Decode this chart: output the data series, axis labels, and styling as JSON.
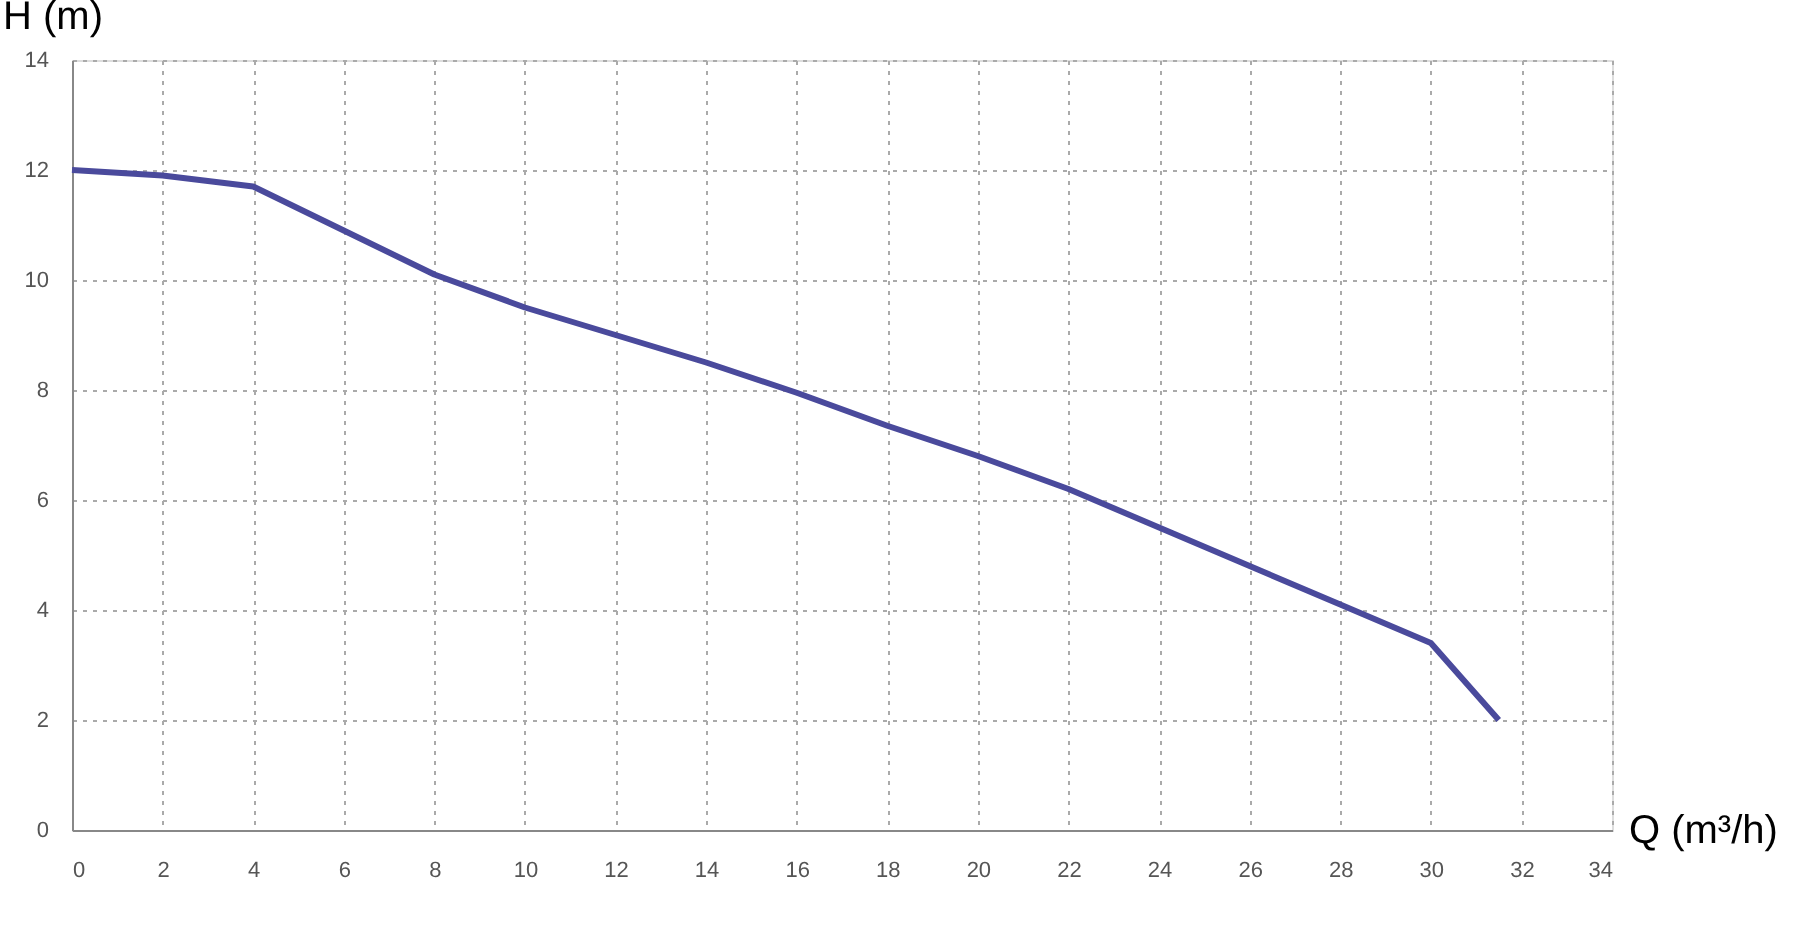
{
  "chart_data": {
    "type": "line",
    "xlabel": "Q (m³/h)",
    "ylabel": "H (m)",
    "x": [
      0,
      2,
      4,
      6,
      8,
      10,
      12,
      14,
      16,
      18,
      20,
      22,
      24,
      26,
      28,
      30,
      31.5
    ],
    "series": [
      {
        "color": "#4a4a9c",
        "values": [
          12,
          11.9,
          11.7,
          10.9,
          10.1,
          9.5,
          9.0,
          8.5,
          7.95,
          7.35,
          6.8,
          6.2,
          5.5,
          4.8,
          4.1,
          3.4,
          2.0
        ]
      }
    ],
    "xlim": [
      0,
      34
    ],
    "xticks": [
      0,
      2,
      4,
      6,
      8,
      10,
      12,
      14,
      16,
      18,
      20,
      22,
      24,
      26,
      28,
      30,
      32,
      34
    ],
    "ylim": [
      0,
      14
    ],
    "yticks": [
      0,
      2,
      4,
      6,
      8,
      10,
      12,
      14
    ],
    "grid": true,
    "marker": "none",
    "line_style": "solid"
  }
}
